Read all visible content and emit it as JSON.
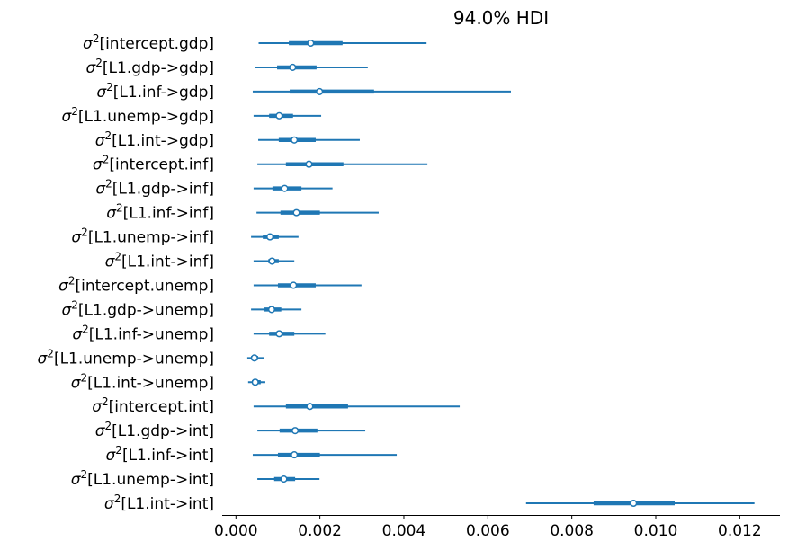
{
  "chart_data": {
    "type": "forest",
    "title": "94.0% HDI",
    "param_symbol": "σ",
    "param_exponent": "2",
    "xlim": [
      -0.0003,
      0.013
    ],
    "xticks": [
      0.0,
      0.002,
      0.004,
      0.006,
      0.008,
      0.01,
      0.012
    ],
    "xtick_labels": [
      "0.000",
      "0.002",
      "0.004",
      "0.006",
      "0.008",
      "0.010",
      "0.012"
    ],
    "grid": false,
    "color": "#1f77b4",
    "series": [
      {
        "label": "[intercept.gdp]",
        "hdi94": [
          0.00054,
          0.00454
        ],
        "iqr": [
          0.00126,
          0.00254
        ],
        "median": 0.00178
      },
      {
        "label": "[L1.gdp->gdp]",
        "hdi94": [
          0.00045,
          0.00314
        ],
        "iqr": [
          0.00098,
          0.00192
        ],
        "median": 0.00135
      },
      {
        "label": "[L1.inf->gdp]",
        "hdi94": [
          0.0004,
          0.00655
        ],
        "iqr": [
          0.00128,
          0.00329
        ],
        "median": 0.00199
      },
      {
        "label": "[L1.unemp->gdp]",
        "hdi94": [
          0.00042,
          0.00203
        ],
        "iqr": [
          0.00079,
          0.00136
        ],
        "median": 0.00103
      },
      {
        "label": "[L1.int->gdp]",
        "hdi94": [
          0.00053,
          0.00295
        ],
        "iqr": [
          0.00102,
          0.0019
        ],
        "median": 0.00139
      },
      {
        "label": "[intercept.inf]",
        "hdi94": [
          0.00051,
          0.00456
        ],
        "iqr": [
          0.00119,
          0.00256
        ],
        "median": 0.00174
      },
      {
        "label": "[L1.gdp->inf]",
        "hdi94": [
          0.00042,
          0.0023
        ],
        "iqr": [
          0.00087,
          0.00156
        ],
        "median": 0.00116
      },
      {
        "label": "[L1.inf->inf]",
        "hdi94": [
          0.00049,
          0.0034
        ],
        "iqr": [
          0.00106,
          0.002
        ],
        "median": 0.00144
      },
      {
        "label": "[L1.unemp->inf]",
        "hdi94": [
          0.00036,
          0.00149
        ],
        "iqr": [
          0.00064,
          0.00102
        ],
        "median": 0.00081
      },
      {
        "label": "[L1.int->inf]",
        "hdi94": [
          0.00042,
          0.00139
        ],
        "iqr": [
          0.00077,
          0.00102
        ],
        "median": 0.00086
      },
      {
        "label": "[intercept.unemp]",
        "hdi94": [
          0.00042,
          0.00299
        ],
        "iqr": [
          0.001,
          0.0019
        ],
        "median": 0.00137
      },
      {
        "label": "[L1.gdp->unemp]",
        "hdi94": [
          0.00036,
          0.00156
        ],
        "iqr": [
          0.00068,
          0.00108
        ],
        "median": 0.00085
      },
      {
        "label": "[L1.inf->unemp]",
        "hdi94": [
          0.00042,
          0.00213
        ],
        "iqr": [
          0.00079,
          0.00139
        ],
        "median": 0.00103
      },
      {
        "label": "[L1.unemp->unemp]",
        "hdi94": [
          0.00027,
          0.00066
        ],
        "iqr": [
          0.00036,
          0.00053
        ],
        "median": 0.00044
      },
      {
        "label": "[L1.int->unemp]",
        "hdi94": [
          0.00029,
          0.0007
        ],
        "iqr": [
          0.00038,
          0.00059
        ],
        "median": 0.00046
      },
      {
        "label": "[intercept.int]",
        "hdi94": [
          0.00042,
          0.00533
        ],
        "iqr": [
          0.00119,
          0.00267
        ],
        "median": 0.00176
      },
      {
        "label": "[L1.gdp->int]",
        "hdi94": [
          0.00051,
          0.00308
        ],
        "iqr": [
          0.00104,
          0.00194
        ],
        "median": 0.00141
      },
      {
        "label": "[L1.inf->int]",
        "hdi94": [
          0.0004,
          0.00383
        ],
        "iqr": [
          0.001,
          0.002
        ],
        "median": 0.00139
      },
      {
        "label": "[L1.unemp->int]",
        "hdi94": [
          0.00051,
          0.00199
        ],
        "iqr": [
          0.00091,
          0.00141
        ],
        "median": 0.00114
      },
      {
        "label": "[L1.int->int]",
        "hdi94": [
          0.00691,
          0.01235
        ],
        "iqr": [
          0.00852,
          0.01045
        ],
        "median": 0.00947
      }
    ]
  }
}
